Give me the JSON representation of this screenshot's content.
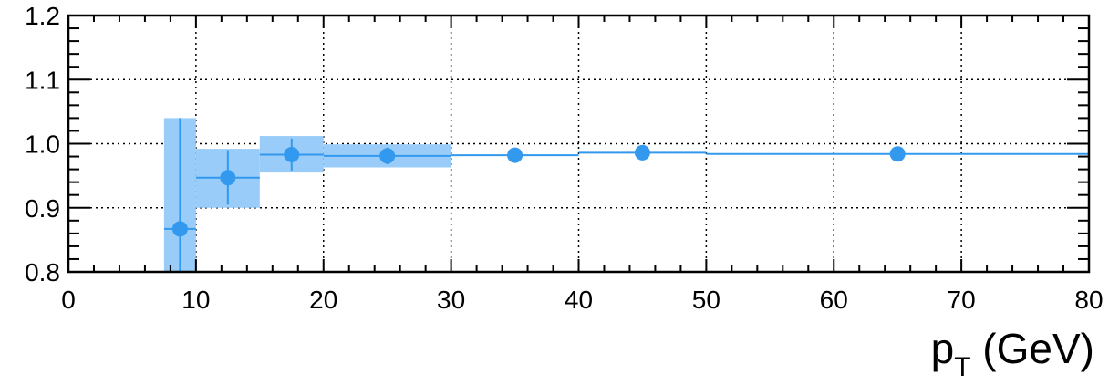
{
  "chart_data": {
    "type": "scatter",
    "title": "",
    "xlabel": {
      "main": "p",
      "subscript": "T",
      "unit": " (GeV)"
    },
    "ylabel": "",
    "xlim": [
      0,
      80
    ],
    "ylim": [
      0.8,
      1.2
    ],
    "grid": true,
    "x_ticks": [
      0,
      10,
      20,
      30,
      40,
      50,
      60,
      70,
      80
    ],
    "x_tick_labels": [
      "0",
      "10",
      "20",
      "30",
      "40",
      "50",
      "60",
      "70",
      "80"
    ],
    "y_ticks": [
      0.8,
      0.9,
      1.0,
      1.1,
      1.2
    ],
    "y_tick_labels": [
      "0.8",
      "0.9",
      "1.0",
      "1.1",
      "1.2"
    ],
    "colors": {
      "marker": "#3399ee",
      "band": "#99ccf8"
    },
    "series": [
      {
        "points": [
          {
            "x": 8.75,
            "x_low": 7.5,
            "x_high": 10,
            "y": 0.867,
            "y_low": 0.8,
            "y_high": 1.04,
            "band_low": 0.8,
            "band_high": 1.04
          },
          {
            "x": 12.5,
            "x_low": 10,
            "x_high": 15,
            "y": 0.947,
            "y_low": 0.905,
            "y_high": 0.99,
            "band_low": 0.9,
            "band_high": 0.992
          },
          {
            "x": 17.5,
            "x_low": 15,
            "x_high": 20,
            "y": 0.983,
            "y_low": 0.958,
            "y_high": 1.008,
            "band_low": 0.955,
            "band_high": 1.012
          },
          {
            "x": 25,
            "x_low": 20,
            "x_high": 30,
            "y": 0.981,
            "y_low": 0.968,
            "y_high": 0.994,
            "band_low": 0.963,
            "band_high": 0.999
          },
          {
            "x": 35,
            "x_low": 30,
            "x_high": 40,
            "y": 0.982,
            "y_low": 0.981,
            "y_high": 0.983,
            "band_low": 0.981,
            "band_high": 0.983
          },
          {
            "x": 45,
            "x_low": 40,
            "x_high": 50,
            "y": 0.986,
            "y_low": 0.985,
            "y_high": 0.987,
            "band_low": 0.985,
            "band_high": 0.987
          },
          {
            "x": 65,
            "x_low": 50,
            "x_high": 80,
            "y": 0.984,
            "y_low": 0.983,
            "y_high": 0.985,
            "band_low": 0.983,
            "band_high": 0.985
          }
        ]
      }
    ]
  }
}
